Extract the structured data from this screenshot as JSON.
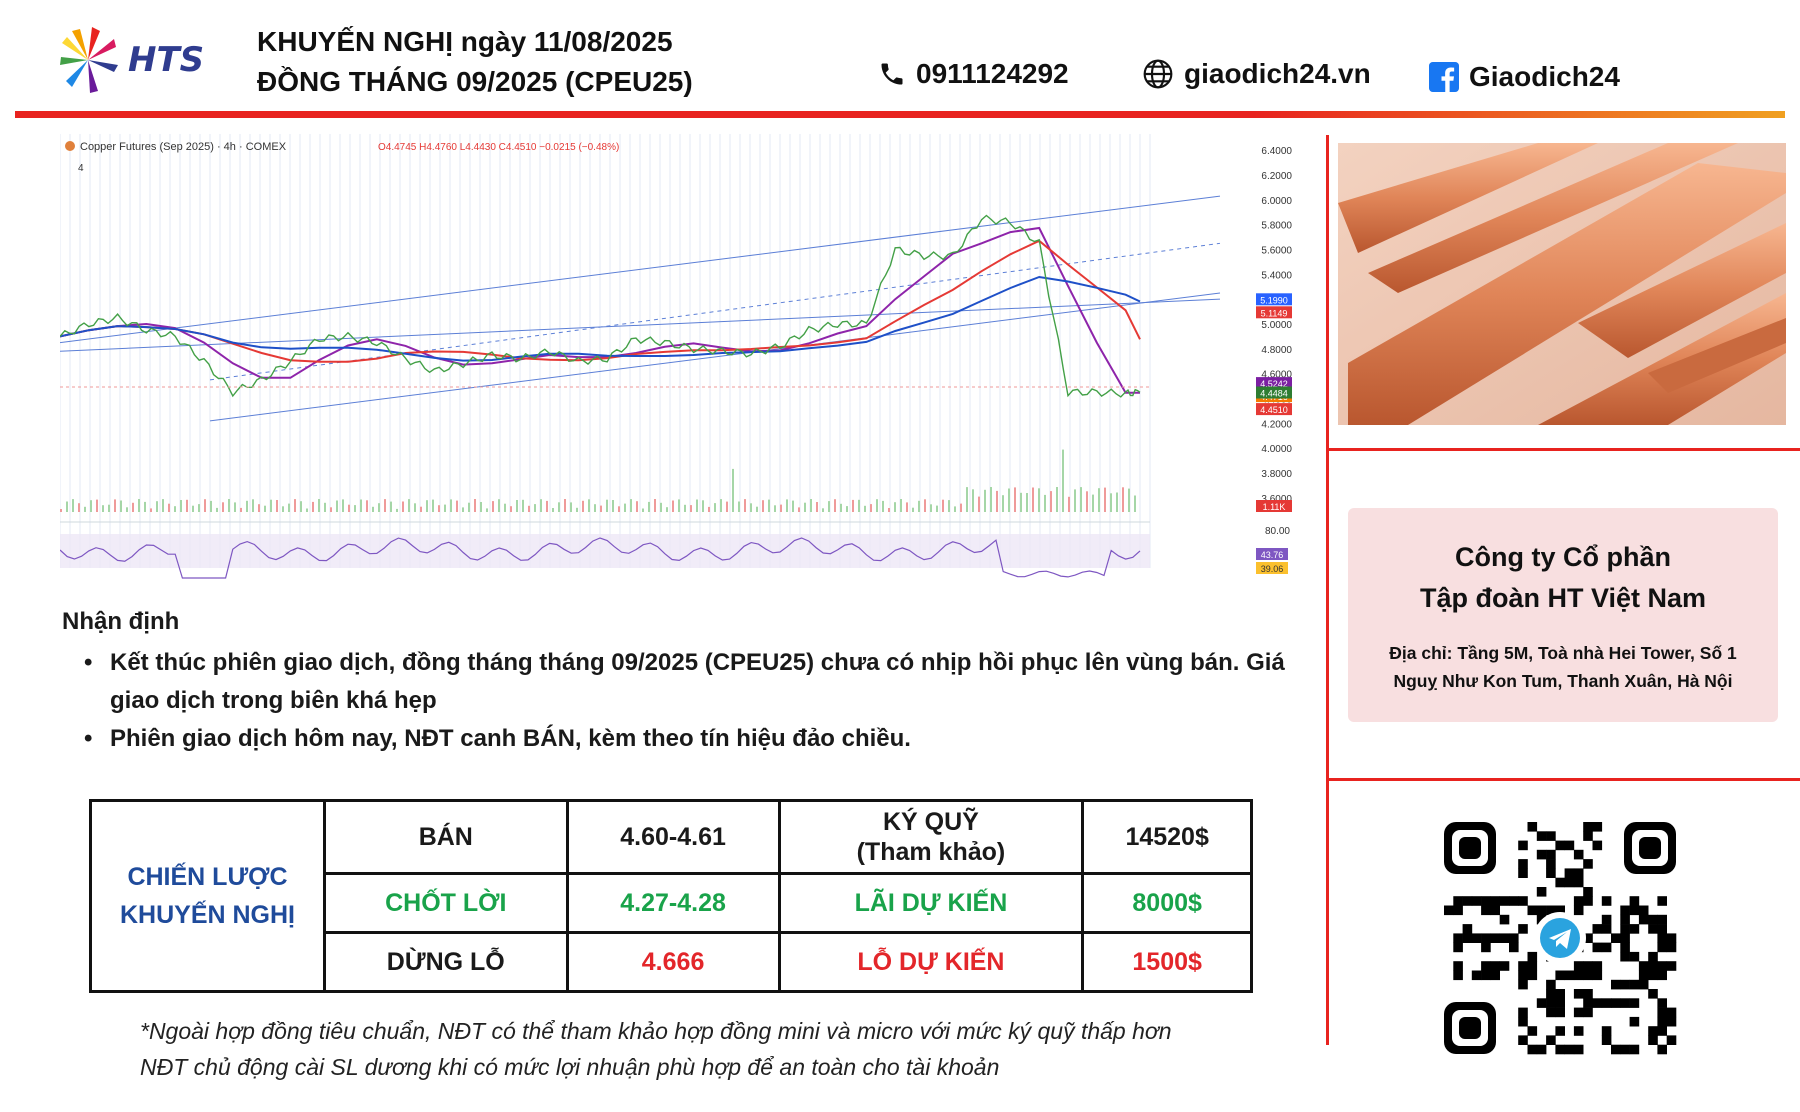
{
  "header": {
    "logo_text": "HTS",
    "title_line1": "KHUYẾN NGHỊ ngày 11/08/2025",
    "title_line2": "ĐỒNG THÁNG 09/2025 (CPEU25)",
    "phone": "0911124292",
    "website": "giaodich24.vn",
    "facebook": "Giaodich24",
    "icons": [
      "phone-icon",
      "globe-icon",
      "facebook-icon"
    ]
  },
  "chart_data": {
    "type": "line",
    "title": "Copper Futures (Sep 2025) · 4h · COMEX",
    "ohlc_label": "O4.4745 H4.4760 L4.4430 C4.4510 −0.0215 (−0.48%)",
    "indicator_label": "4",
    "price_axis_ticks": [
      6.4,
      6.2,
      6.0,
      5.8,
      5.6,
      5.4,
      5.2,
      5.0,
      4.8,
      4.6,
      4.4,
      4.2,
      4.0,
      3.8,
      3.6
    ],
    "ylim": [
      3.55,
      6.45
    ],
    "price_badges": [
      {
        "label": "5.1990",
        "value": 5.199,
        "color": "#2962ff"
      },
      {
        "label": "5.1149",
        "value": 5.1149,
        "color": "#e53935"
      },
      {
        "label": "4.5242",
        "value": 4.5242,
        "color": "#7b1fa2"
      },
      {
        "label": "4.4716",
        "value": 4.4716,
        "color": "#f57c00"
      },
      {
        "label": "4.4510",
        "value": 4.451,
        "color": "#e53935"
      },
      {
        "label": "4.4484",
        "value": 4.4484,
        "color": "#2e7d32"
      },
      {
        "label": "1.11K",
        "value": 1110,
        "color": "#e53935"
      }
    ],
    "rsi_axis_ticks": [
      "80.00"
    ],
    "rsi_badges": [
      {
        "label": "43.76",
        "color": "#7e57c2"
      },
      {
        "label": "39.06",
        "color": "#fbc02d"
      }
    ],
    "x": [
      0,
      8,
      16,
      24,
      32,
      40,
      48,
      56,
      64,
      72,
      80,
      88,
      96,
      104,
      112,
      120,
      128,
      136,
      144,
      152,
      160,
      168,
      176,
      184,
      192,
      200,
      208,
      216,
      224,
      232,
      240,
      248,
      256,
      264,
      272,
      280,
      288,
      296,
      300
    ],
    "series": [
      {
        "values": [
          4.9,
          5.0,
          5.05,
          4.95,
          4.9,
          4.7,
          4.45,
          4.55,
          4.7,
          4.88,
          4.9,
          4.85,
          4.72,
          4.62,
          4.68,
          4.75,
          4.72,
          4.78,
          4.7,
          4.72,
          4.88,
          4.85,
          4.8,
          4.78,
          4.76,
          4.82,
          4.95,
          5.0,
          5.0,
          5.6,
          5.55,
          5.55,
          5.85,
          5.82,
          5.65,
          4.45,
          4.45,
          4.44,
          4.45
        ]
      }
    ],
    "channel_lines": 4,
    "moving_averages": [
      "red",
      "blue",
      "purple"
    ]
  },
  "company": {
    "name_line1": "Công ty Cổ phần",
    "name_line2": "Tập đoàn HT Việt Nam",
    "address_line1": "Địa chỉ: Tầng 5M, Toà nhà Hei Tower, Số 1",
    "address_line2": "Nguỵ Như Kon Tum, Thanh Xuân, Hà Nội"
  },
  "analysis": {
    "heading": "Nhận định",
    "bullets": [
      "Kết thúc phiên giao dịch, đồng tháng tháng 09/2025 (CPEU25) chưa có nhịp hồi phục lên vùng bán. Giá giao dịch trong biên khá hẹp",
      "Phiên giao dịch hôm nay, NĐT canh BÁN, kèm theo tín hiệu đảo chiều."
    ]
  },
  "strategy": {
    "header_line1": "CHIẾN LƯỢC",
    "header_line2": "KHUYẾN NGHỊ",
    "rows": [
      {
        "action": "BÁN",
        "price": "4.60-4.61",
        "label_line1": "KÝ QUỸ",
        "label_line2": "(Tham khảo)",
        "amount": "14520$"
      },
      {
        "action": "CHỐT LỜI",
        "price": "4.27-4.28",
        "label_line1": "LÃI DỰ KIẾN",
        "label_line2": "",
        "amount": "8000$"
      },
      {
        "action": "DỪNG LỖ",
        "price": "4.666",
        "label_line1": "LỖ DỰ KIẾN",
        "label_line2": "",
        "amount": "1500$"
      }
    ]
  },
  "note": {
    "line1": "*Ngoài hợp đồng tiêu chuẩn, NĐT có thể tham khảo hợp đồng mini và micro với mức ký quỹ thấp hơn",
    "line2": "NĐT chủ động cài SL dương khi có mức lợi nhuận phù hợp để an toàn cho tài khoản"
  }
}
